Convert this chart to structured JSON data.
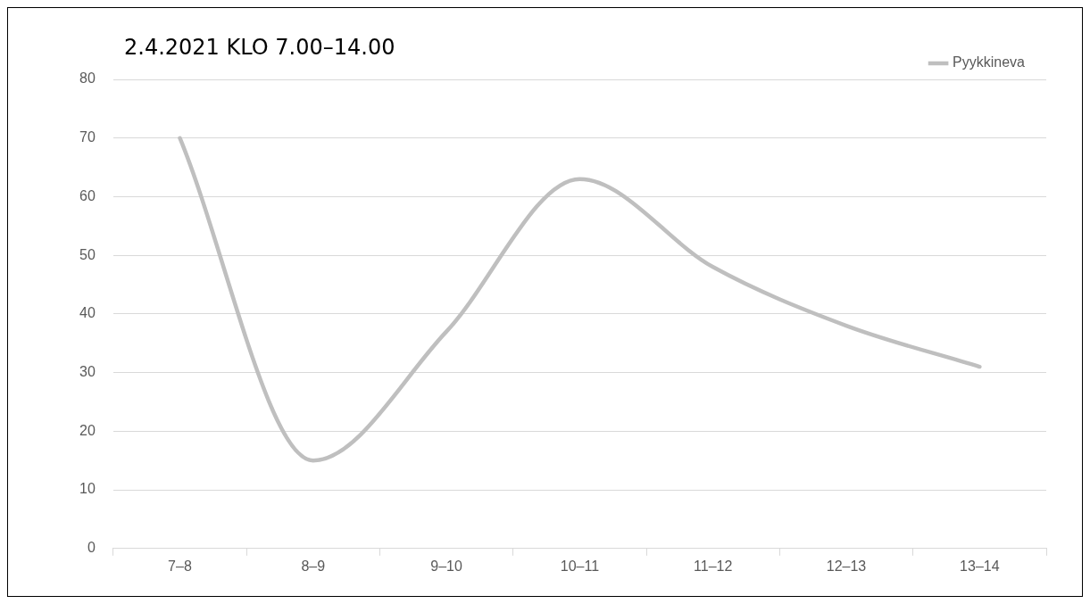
{
  "chart_data": {
    "type": "line",
    "title": "2.4.2021 KLO 7.00–14.00",
    "categories": [
      "7–8",
      "8–9",
      "9–10",
      "10–11",
      "11–12",
      "12–13",
      "13–14"
    ],
    "series": [
      {
        "name": "Pyykkineva",
        "color": "#bfbfbf",
        "values": [
          70,
          15,
          37,
          63,
          48,
          38,
          31
        ]
      }
    ],
    "ylim": [
      0,
      80
    ],
    "yticks": [
      0,
      10,
      20,
      30,
      40,
      50,
      60,
      70,
      80
    ],
    "grid": "y",
    "legend": "top right",
    "marker": "none"
  }
}
